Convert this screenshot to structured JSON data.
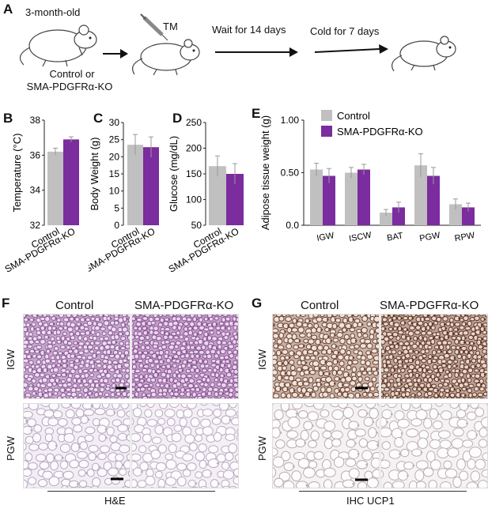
{
  "panels": {
    "A": {
      "label": "A",
      "age": "3-month-old",
      "group_line1": "Control or",
      "group_line2": "SMA-PDGFRα-KO",
      "injection": "TM",
      "step1": "Wait for 14 days",
      "step2": "Cold for 7 days"
    },
    "B": {
      "label": "B"
    },
    "C": {
      "label": "C"
    },
    "D": {
      "label": "D"
    },
    "E": {
      "label": "E"
    },
    "F": {
      "label": "F",
      "col1": "Control",
      "col2": "SMA-PDGFRα-KO",
      "row1": "IGW",
      "row2": "PGW",
      "stain": "H&E"
    },
    "G": {
      "label": "G",
      "col1": "Control",
      "col2": "SMA-PDGFRα-KO",
      "row1": "IGW",
      "row2": "PGW",
      "stain": "IHC UCP1"
    }
  },
  "colors": {
    "control": "#c0c0c0",
    "ko": "#7b2c9e"
  },
  "chart_data": [
    {
      "id": "B",
      "type": "bar",
      "categories": [
        "Control",
        "SMA-PDGFRα-KO"
      ],
      "values": [
        36.2,
        36.9
      ],
      "errors": [
        0.2,
        0.15
      ],
      "ylabel": "Temperature (°C)",
      "ylim": [
        32,
        38
      ],
      "yticks": [
        "32",
        "34",
        "36",
        "38"
      ]
    },
    {
      "id": "C",
      "type": "bar",
      "categories": [
        "Control",
        "SMA-PDGFRα-KO"
      ],
      "values": [
        23.5,
        22.8
      ],
      "errors": [
        3,
        3
      ],
      "ylabel": "Body Weight (g)",
      "ylim": [
        0,
        30
      ],
      "yticks": [
        "0",
        "5",
        "10",
        "15",
        "20",
        "25",
        "30"
      ]
    },
    {
      "id": "D",
      "type": "bar",
      "categories": [
        "Control",
        "SMA-PDGFRα-KO"
      ],
      "values": [
        165,
        150
      ],
      "errors": [
        20,
        20
      ],
      "ylabel": "Glucose (mg/dL)",
      "ylim": [
        50,
        250
      ],
      "yticks": [
        "50",
        "100",
        "150",
        "200",
        "250"
      ]
    },
    {
      "id": "E",
      "type": "bar",
      "categories": [
        "IGW",
        "ISCW",
        "BAT",
        "PGW",
        "RPW"
      ],
      "series": [
        {
          "name": "Control",
          "values": [
            0.53,
            0.5,
            0.12,
            0.57,
            0.2
          ],
          "errors": [
            0.06,
            0.05,
            0.03,
            0.11,
            0.05
          ]
        },
        {
          "name": "SMA-PDGFRα-KO",
          "values": [
            0.47,
            0.53,
            0.17,
            0.47,
            0.17
          ],
          "errors": [
            0.07,
            0.05,
            0.05,
            0.08,
            0.04
          ]
        }
      ],
      "ylabel": "Adipose tissue weight (g)",
      "ylim": [
        0,
        1
      ],
      "yticks": [
        "0.0",
        "0.50",
        "1.00"
      ],
      "legend": "top-left"
    }
  ]
}
